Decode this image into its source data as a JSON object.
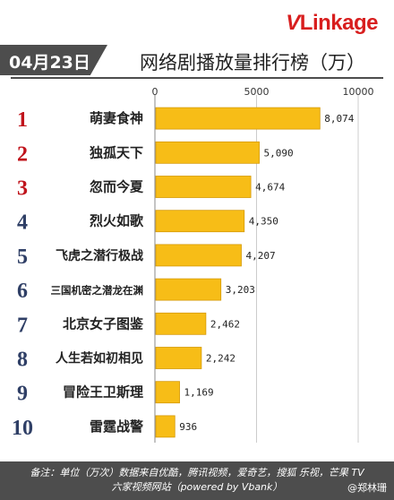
{
  "brand": {
    "logo_v": "V",
    "logo_rest": "Linkage"
  },
  "header": {
    "date": "04月23日",
    "title": "网络剧播放量排行榜（万）"
  },
  "footer": {
    "line1": "备注：单位（万次）数据来自优酷，腾讯视频，爱奇艺，搜狐 乐视，芒果 TV",
    "line2": "六家视频网站（powered by Vbank）"
  },
  "watermark": "@郑林珊",
  "colors": {
    "bar": "#f7bd17",
    "bar_edge": "#d59a08",
    "rank_red": "#c0141c",
    "rank_dark": "#2f3f66",
    "banner": "#4d4d4d",
    "grid": "#cccccc"
  },
  "chart_data": {
    "type": "bar",
    "orientation": "horizontal",
    "xlim": [
      0,
      10000
    ],
    "xticks": [
      "0",
      "5000",
      "10000"
    ],
    "grid": true,
    "ranks": [
      "1",
      "2",
      "3",
      "4",
      "5",
      "6",
      "7",
      "8",
      "9",
      "10"
    ],
    "categories": [
      "萌妻食神",
      "独孤天下",
      "忽而今夏",
      "烈火如歌",
      "飞虎之潜行极战",
      "三国机密之潜龙在渊",
      "北京女子图鉴",
      "人生若如初相见",
      "冒险王卫斯理",
      "雷霆战警"
    ],
    "values": [
      8074,
      5090,
      4674,
      4350,
      4207,
      3203,
      2462,
      2242,
      1169,
      936
    ],
    "value_labels": [
      "8,074",
      "5,090",
      "4,674",
      "4,350",
      "4,207",
      "3,203",
      "2,462",
      "2,242",
      "1,169",
      "936"
    ]
  }
}
